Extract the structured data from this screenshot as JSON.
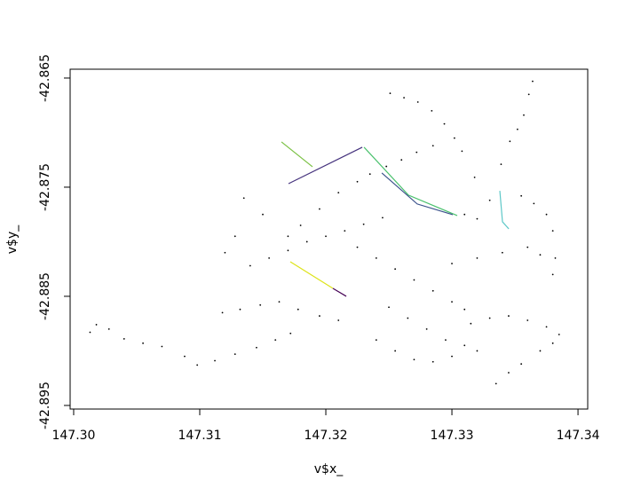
{
  "chart_data": {
    "type": "scatter",
    "x_label": "v$x_",
    "y_label": "v$y_",
    "xlim": [
      147.29972,
      147.34077
    ],
    "ylim": [
      -42.89533,
      -42.86419
    ],
    "xticks": [
      {
        "value": 147.3,
        "label": "147.30"
      },
      147.31,
      147.32,
      147.33,
      147.34
    ],
    "yticks": [
      -42.865,
      -42.875,
      -42.885,
      -42.895
    ],
    "series": [
      {
        "style": "points",
        "color": "#000000",
        "x": [
          147.3013,
          147.3018,
          147.3028,
          147.304,
          147.3055,
          147.307,
          147.3088,
          147.3098,
          147.3112,
          147.3128,
          147.3145,
          147.316,
          147.3172,
          147.3118,
          147.3132,
          147.3148,
          147.3163,
          147.3178,
          147.3195,
          147.321,
          147.314,
          147.3155,
          147.317,
          147.3185,
          147.32,
          147.3215,
          147.323,
          147.3245,
          147.317,
          147.318,
          147.3195,
          147.321,
          147.3225,
          147.3135,
          147.315,
          147.3225,
          147.324,
          147.3255,
          147.327,
          147.3285,
          147.33,
          147.331,
          147.325,
          147.3265,
          147.328,
          147.3295,
          147.331,
          147.332,
          147.324,
          147.3255,
          147.327,
          147.3285,
          147.33,
          147.3315,
          147.333,
          147.3345,
          147.336,
          147.3375,
          147.3385,
          147.338,
          147.337,
          147.3355,
          147.3345,
          147.3335,
          147.3364,
          147.3361,
          147.3357,
          147.3352,
          147.3346,
          147.3339,
          147.3251,
          147.3262,
          147.3273,
          147.3284,
          147.3294,
          147.3302,
          147.3308,
          147.3318,
          147.333,
          147.331,
          147.332,
          147.3355,
          147.3365,
          147.3375,
          147.338,
          147.3382,
          147.338,
          147.337,
          147.3285,
          147.3272,
          147.326,
          147.3248,
          147.3235,
          147.312,
          147.3128,
          147.33,
          147.332,
          147.334,
          147.336
        ],
        "values": [
          -42.8883,
          -42.8876,
          -42.888,
          -42.8889,
          -42.8893,
          -42.8896,
          -42.8905,
          -42.8913,
          -42.8909,
          -42.8903,
          -42.8897,
          -42.889,
          -42.8884,
          -42.8865,
          -42.8862,
          -42.8858,
          -42.8855,
          -42.8862,
          -42.8868,
          -42.8872,
          -42.8822,
          -42.8815,
          -42.8808,
          -42.88,
          -42.8795,
          -42.879,
          -42.8784,
          -42.8778,
          -42.8795,
          -42.8785,
          -42.877,
          -42.8755,
          -42.8745,
          -42.876,
          -42.8775,
          -42.8805,
          -42.8815,
          -42.8825,
          -42.8835,
          -42.8845,
          -42.8855,
          -42.8862,
          -42.886,
          -42.887,
          -42.888,
          -42.889,
          -42.8895,
          -42.89,
          -42.889,
          -42.89,
          -42.8908,
          -42.891,
          -42.8905,
          -42.8875,
          -42.887,
          -42.8868,
          -42.8872,
          -42.8878,
          -42.8885,
          -42.8893,
          -42.89,
          -42.8912,
          -42.892,
          -42.893,
          -42.8653,
          -42.8665,
          -42.8684,
          -42.8697,
          -42.8708,
          -42.8729,
          -42.8664,
          -42.8668,
          -42.8672,
          -42.868,
          -42.8692,
          -42.8705,
          -42.8717,
          -42.8741,
          -42.8762,
          -42.8775,
          -42.8779,
          -42.8758,
          -42.8765,
          -42.8775,
          -42.879,
          -42.8815,
          -42.883,
          -42.8812,
          -42.8712,
          -42.8718,
          -42.8725,
          -42.8731,
          -42.8738,
          -42.881,
          -42.8795,
          -42.882,
          -42.8815,
          -42.881,
          -42.8805
        ]
      },
      {
        "style": "line",
        "color": "#7ac143",
        "x": [
          147.31648,
          147.31894
        ],
        "values": [
          -42.87085,
          -42.87313
        ]
      },
      {
        "style": "line",
        "color": "#46337e",
        "x": [
          147.31704,
          147.32289
        ],
        "values": [
          -42.87468,
          -42.87134
        ]
      },
      {
        "style": "line",
        "color": "#4ac16d",
        "x": [
          147.32303,
          147.32655,
          147.33042
        ],
        "values": [
          -42.87134,
          -42.87573,
          -42.8776
        ]
      },
      {
        "style": "line",
        "color": "#3b528b",
        "x": [
          147.32444,
          147.32725,
          147.33007
        ],
        "values": [
          -42.8737,
          -42.87654,
          -42.87752
        ]
      },
      {
        "style": "line",
        "color": "#dde318",
        "x": [
          147.31718,
          147.32056
        ],
        "values": [
          -42.88183,
          -42.88427
        ]
      },
      {
        "style": "line",
        "color": "#440154",
        "x": [
          147.32056,
          147.32162
        ],
        "values": [
          -42.88427,
          -42.885
        ]
      },
      {
        "style": "line",
        "color": "#5ec8c8",
        "x": [
          147.3338,
          147.33401,
          147.33451
        ],
        "values": [
          -42.87533,
          -42.87817,
          -42.87882
        ]
      }
    ]
  }
}
